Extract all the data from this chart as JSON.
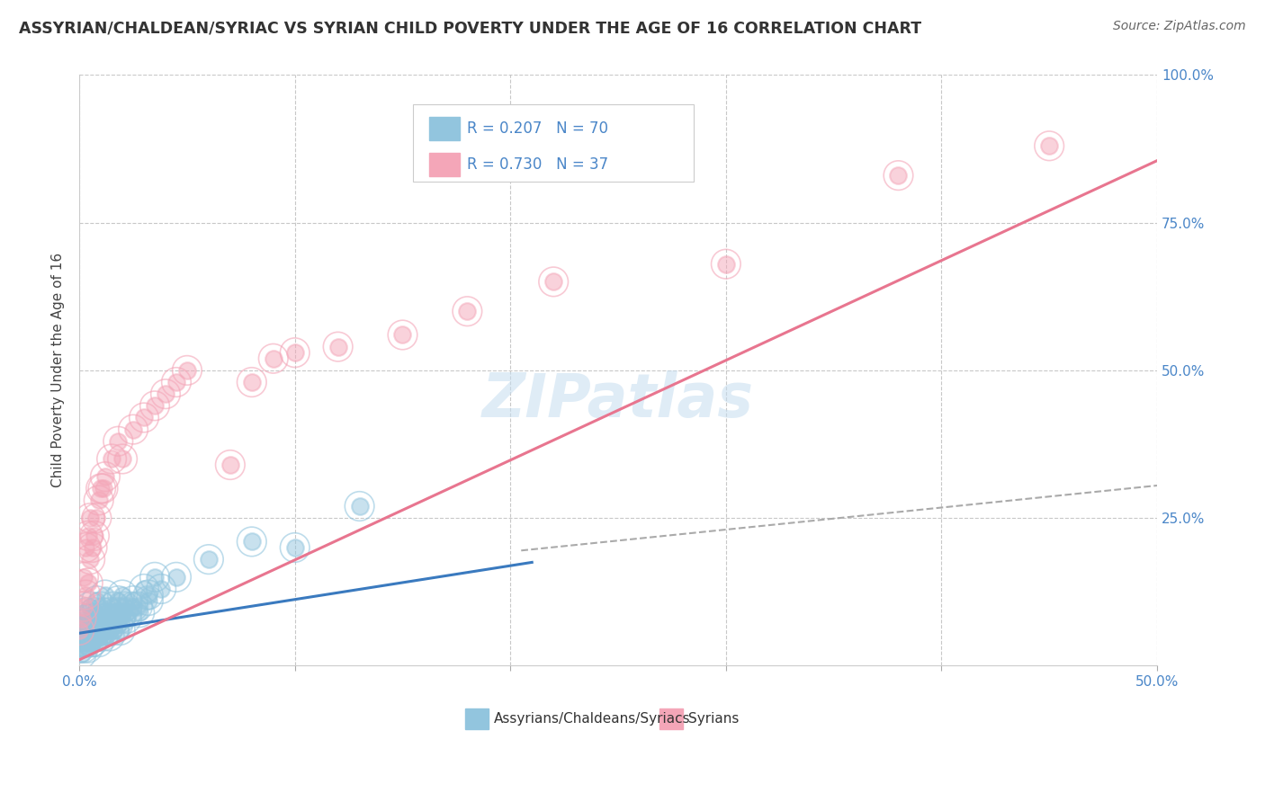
{
  "title": "ASSYRIAN/CHALDEAN/SYRIAC VS SYRIAN CHILD POVERTY UNDER THE AGE OF 16 CORRELATION CHART",
  "source": "Source: ZipAtlas.com",
  "ylabel": "Child Poverty Under the Age of 16",
  "legend_label1": "Assyrians/Chaldeans/Syriacs",
  "legend_label2": "Syrians",
  "R1": 0.207,
  "N1": 70,
  "R2": 0.73,
  "N2": 37,
  "blue_color": "#92c5de",
  "pink_color": "#f4a6b8",
  "blue_line_color": "#3a7abf",
  "pink_line_color": "#e8758f",
  "watermark": "ZIPatlas",
  "xlim": [
    0.0,
    0.5
  ],
  "ylim": [
    0.0,
    1.0
  ],
  "blue_line_x": [
    0.0,
    0.21
  ],
  "blue_line_y": [
    0.055,
    0.175
  ],
  "pink_line_x": [
    0.0,
    0.5
  ],
  "pink_line_y": [
    0.01,
    0.855
  ],
  "dash_line_x": [
    0.205,
    0.5
  ],
  "dash_line_y": [
    0.195,
    0.305
  ],
  "blue_scatter_x": [
    0.0,
    0.001,
    0.002,
    0.002,
    0.003,
    0.003,
    0.004,
    0.004,
    0.005,
    0.005,
    0.005,
    0.006,
    0.006,
    0.007,
    0.007,
    0.008,
    0.008,
    0.009,
    0.009,
    0.01,
    0.01,
    0.011,
    0.011,
    0.012,
    0.012,
    0.013,
    0.014,
    0.015,
    0.016,
    0.017,
    0.018,
    0.019,
    0.02,
    0.021,
    0.022,
    0.025,
    0.027,
    0.03,
    0.032,
    0.035,
    0.001,
    0.002,
    0.003,
    0.004,
    0.005,
    0.006,
    0.007,
    0.008,
    0.009,
    0.01,
    0.011,
    0.012,
    0.013,
    0.014,
    0.015,
    0.016,
    0.017,
    0.018,
    0.019,
    0.02,
    0.022,
    0.025,
    0.028,
    0.032,
    0.038,
    0.045,
    0.06,
    0.08,
    0.1,
    0.13
  ],
  "blue_scatter_y": [
    0.03,
    0.04,
    0.05,
    0.07,
    0.06,
    0.09,
    0.05,
    0.08,
    0.07,
    0.06,
    0.1,
    0.08,
    0.04,
    0.07,
    0.09,
    0.06,
    0.11,
    0.05,
    0.08,
    0.07,
    0.1,
    0.06,
    0.09,
    0.08,
    0.12,
    0.07,
    0.09,
    0.08,
    0.1,
    0.09,
    0.11,
    0.08,
    0.12,
    0.1,
    0.09,
    0.11,
    0.1,
    0.13,
    0.12,
    0.15,
    0.02,
    0.03,
    0.04,
    0.03,
    0.05,
    0.04,
    0.06,
    0.05,
    0.04,
    0.06,
    0.05,
    0.07,
    0.06,
    0.05,
    0.07,
    0.06,
    0.08,
    0.07,
    0.06,
    0.09,
    0.08,
    0.1,
    0.09,
    0.11,
    0.13,
    0.15,
    0.18,
    0.21,
    0.2,
    0.27
  ],
  "pink_scatter_x": [
    0.0,
    0.001,
    0.002,
    0.002,
    0.003,
    0.003,
    0.004,
    0.004,
    0.005,
    0.005,
    0.006,
    0.007,
    0.008,
    0.009,
    0.01,
    0.011,
    0.012,
    0.015,
    0.018,
    0.02,
    0.025,
    0.03,
    0.035,
    0.04,
    0.045,
    0.05,
    0.07,
    0.08,
    0.09,
    0.1,
    0.12,
    0.15,
    0.18,
    0.22,
    0.3,
    0.38,
    0.45
  ],
  "pink_scatter_y": [
    0.06,
    0.08,
    0.1,
    0.15,
    0.12,
    0.2,
    0.14,
    0.22,
    0.18,
    0.25,
    0.2,
    0.22,
    0.25,
    0.28,
    0.3,
    0.3,
    0.32,
    0.35,
    0.38,
    0.35,
    0.4,
    0.42,
    0.44,
    0.46,
    0.48,
    0.5,
    0.34,
    0.48,
    0.52,
    0.53,
    0.54,
    0.56,
    0.6,
    0.65,
    0.68,
    0.83,
    0.88
  ]
}
